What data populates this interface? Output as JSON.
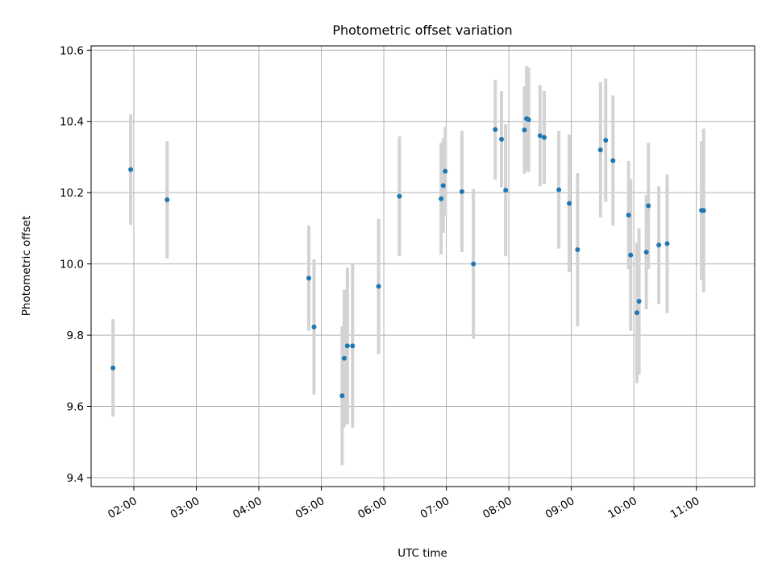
{
  "chart_data": {
    "type": "scatter",
    "title": "Photometric offset variation",
    "xlabel": "UTC time",
    "ylabel": "Photometric offset",
    "xlim": [
      "01:19",
      "11:56"
    ],
    "ylim": [
      9.375,
      10.612
    ],
    "xticks": [
      "02:00",
      "03:00",
      "04:00",
      "05:00",
      "06:00",
      "07:00",
      "08:00",
      "09:00",
      "10:00",
      "11:00"
    ],
    "yticks": [
      9.4,
      9.6,
      9.8,
      10.0,
      10.2,
      10.4,
      10.6
    ],
    "grid": true,
    "colors": {
      "point": "#1f77b4",
      "errorbar": "#d3d3d3"
    },
    "points": [
      {
        "t": "01:40",
        "y": 9.708,
        "err": 0.137
      },
      {
        "t": "01:57",
        "y": 10.265,
        "err": 0.155
      },
      {
        "t": "02:32",
        "y": 10.18,
        "err": 0.165
      },
      {
        "t": "04:48",
        "y": 9.96,
        "err": 0.148
      },
      {
        "t": "04:53",
        "y": 9.823,
        "err": 0.19
      },
      {
        "t": "05:20",
        "y": 9.63,
        "err": 0.195
      },
      {
        "t": "05:22",
        "y": 9.735,
        "err": 0.193
      },
      {
        "t": "05:25",
        "y": 9.77,
        "err": 0.22
      },
      {
        "t": "05:30",
        "y": 9.77,
        "err": 0.23
      },
      {
        "t": "05:55",
        "y": 9.937,
        "err": 0.19
      },
      {
        "t": "06:15",
        "y": 10.19,
        "err": 0.168
      },
      {
        "t": "06:55",
        "y": 10.183,
        "err": 0.157
      },
      {
        "t": "06:57",
        "y": 10.22,
        "err": 0.133
      },
      {
        "t": "06:59",
        "y": 10.26,
        "err": 0.125
      },
      {
        "t": "07:15",
        "y": 10.203,
        "err": 0.17
      },
      {
        "t": "07:26",
        "y": 10.0,
        "err": 0.21
      },
      {
        "t": "07:47",
        "y": 10.377,
        "err": 0.14
      },
      {
        "t": "07:53",
        "y": 10.35,
        "err": 0.135
      },
      {
        "t": "07:57",
        "y": 10.207,
        "err": 0.185
      },
      {
        "t": "08:15",
        "y": 10.376,
        "err": 0.123
      },
      {
        "t": "08:17",
        "y": 10.408,
        "err": 0.147
      },
      {
        "t": "08:19",
        "y": 10.405,
        "err": 0.147
      },
      {
        "t": "08:30",
        "y": 10.36,
        "err": 0.142
      },
      {
        "t": "08:34",
        "y": 10.355,
        "err": 0.13
      },
      {
        "t": "08:48",
        "y": 10.208,
        "err": 0.165
      },
      {
        "t": "08:58",
        "y": 10.17,
        "err": 0.193
      },
      {
        "t": "09:06",
        "y": 10.04,
        "err": 0.215
      },
      {
        "t": "09:28",
        "y": 10.32,
        "err": 0.19
      },
      {
        "t": "09:33",
        "y": 10.347,
        "err": 0.173
      },
      {
        "t": "09:40",
        "y": 10.29,
        "err": 0.183
      },
      {
        "t": "09:55",
        "y": 10.137,
        "err": 0.152
      },
      {
        "t": "09:57",
        "y": 10.025,
        "err": 0.213
      },
      {
        "t": "10:03",
        "y": 9.863,
        "err": 0.198
      },
      {
        "t": "10:05",
        "y": 9.895,
        "err": 0.205
      },
      {
        "t": "10:12",
        "y": 10.033,
        "err": 0.16
      },
      {
        "t": "10:14",
        "y": 10.163,
        "err": 0.177
      },
      {
        "t": "10:24",
        "y": 10.053,
        "err": 0.165
      },
      {
        "t": "10:32",
        "y": 10.057,
        "err": 0.195
      },
      {
        "t": "11:05",
        "y": 10.15,
        "err": 0.195
      },
      {
        "t": "11:07",
        "y": 10.15,
        "err": 0.23
      }
    ]
  }
}
